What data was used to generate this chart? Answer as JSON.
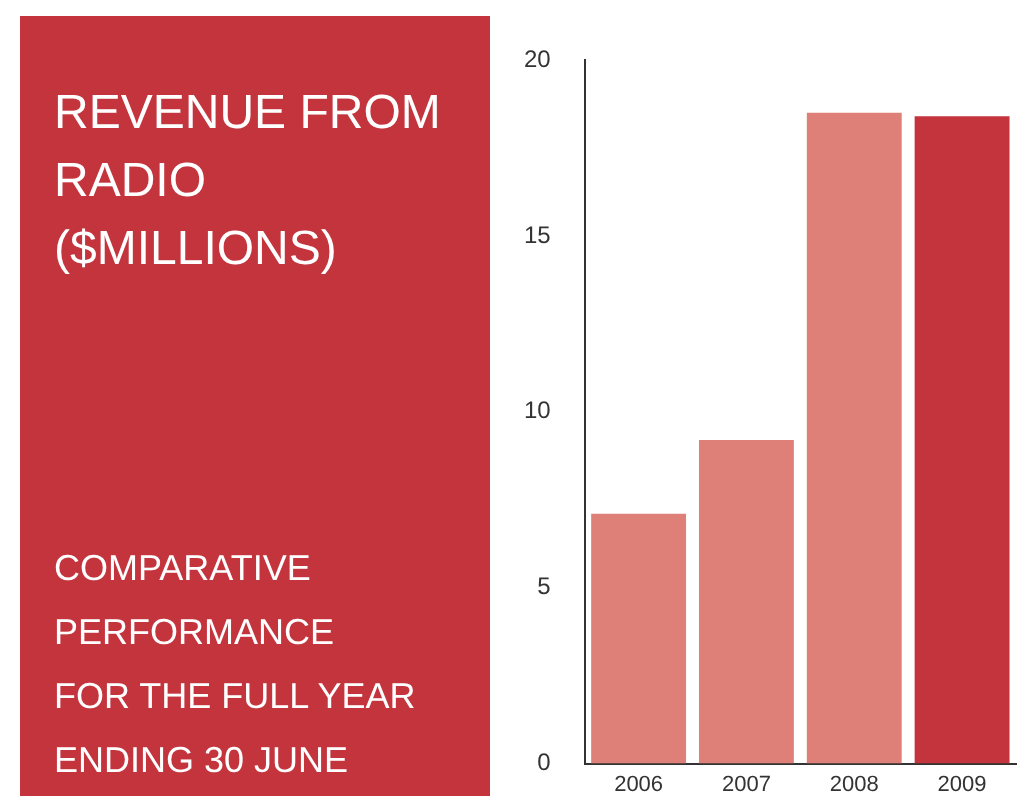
{
  "chart_data": {
    "type": "bar",
    "title": "REVENUE FROM RADIO ($MILLIONS)",
    "subtitle": "COMPARATIVE\nPERFORMANCE\nFOR THE FULL YEAR\nENDING 30 JUNE",
    "categories": [
      "2006",
      "2007",
      "2008",
      "2009"
    ],
    "values": [
      7.1,
      9.2,
      18.5,
      18.4
    ],
    "colors": [
      "#de8077",
      "#de8077",
      "#de8077",
      "#c4343d"
    ],
    "ylim": [
      0,
      20
    ],
    "yticks": [
      0,
      5,
      10,
      15,
      20
    ],
    "grid": false,
    "legend": false
  }
}
